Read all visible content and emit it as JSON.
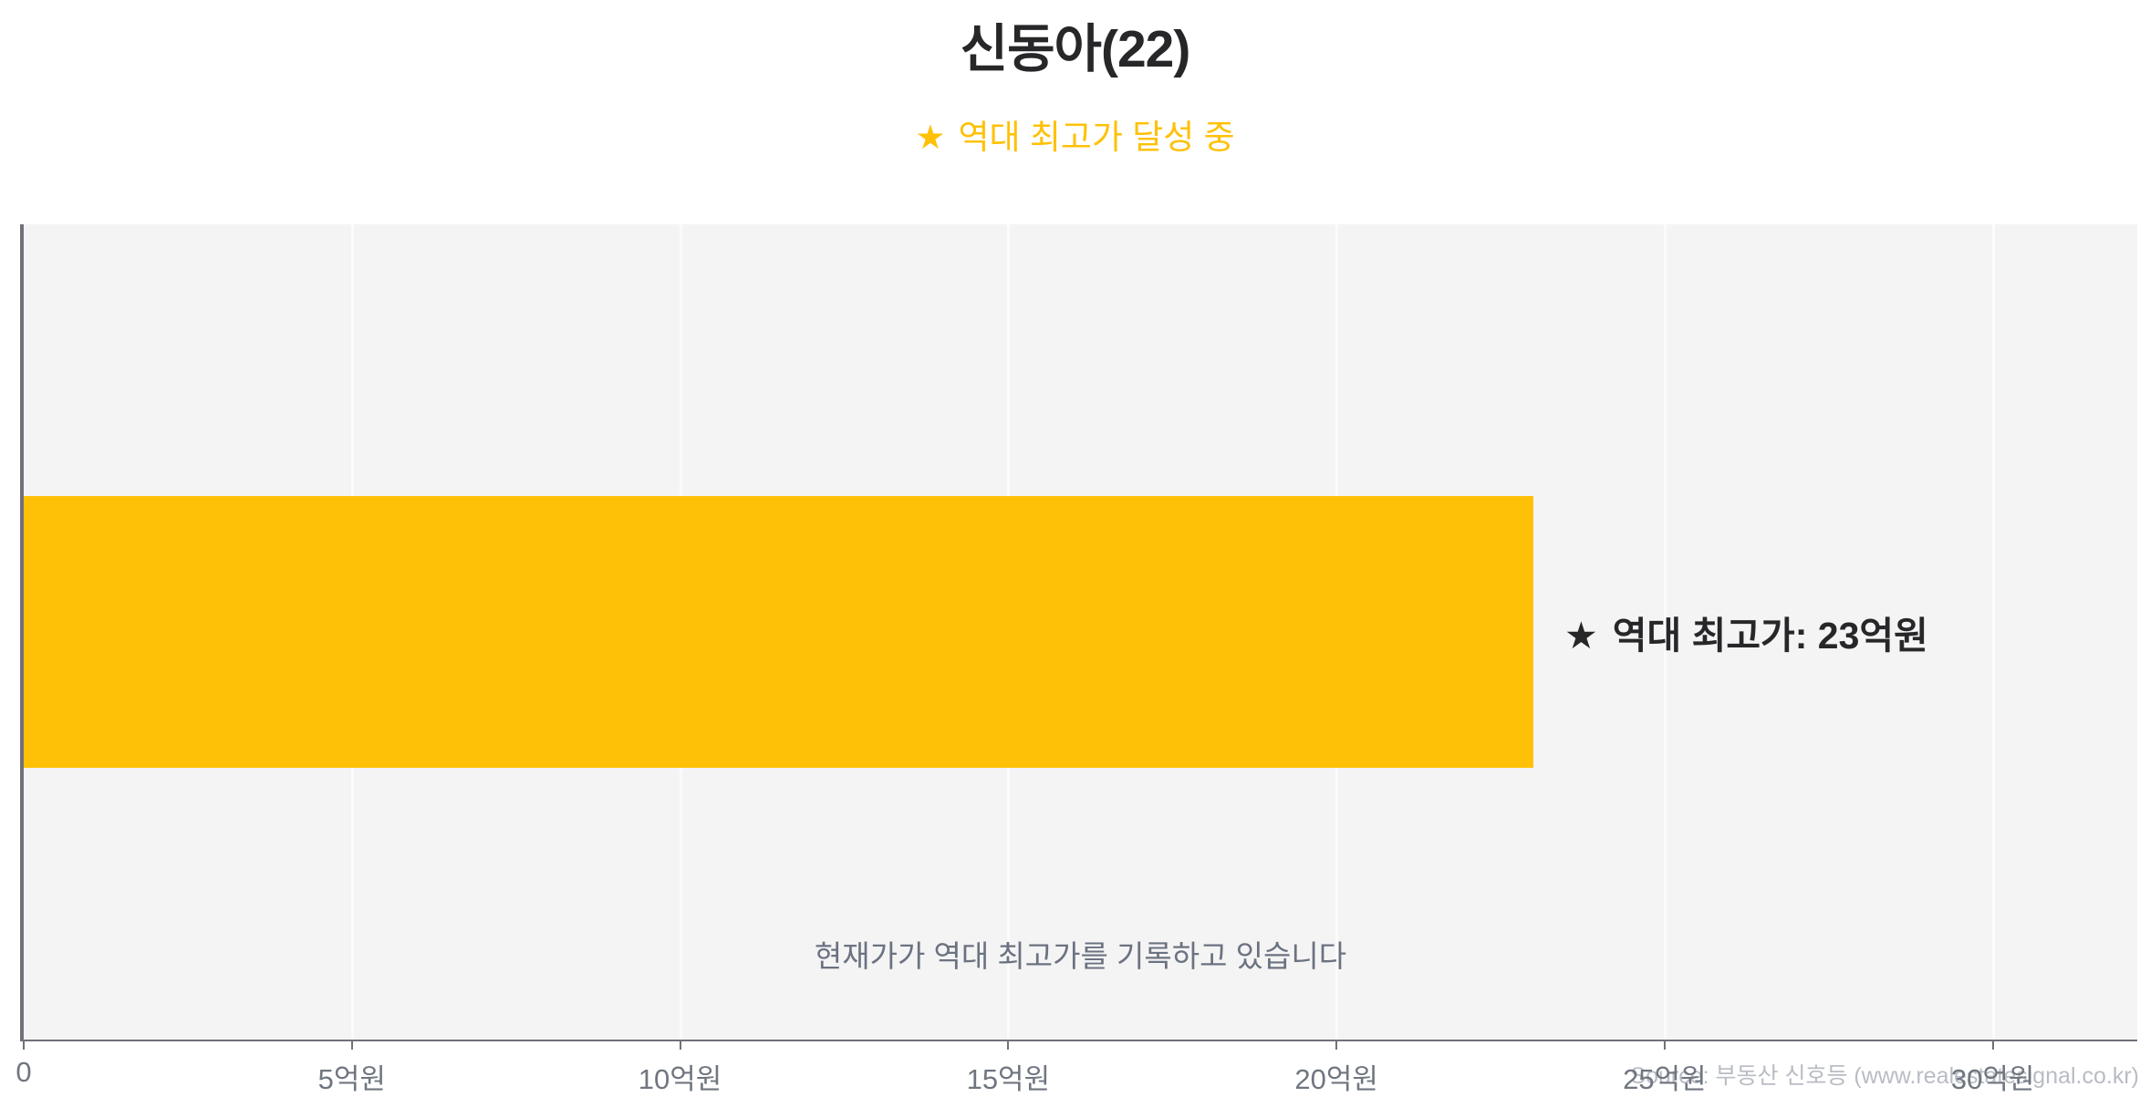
{
  "header": {
    "title": "신동아(22)",
    "subtitle": {
      "star_icon": "★",
      "text": "역대 최고가 달성 중"
    }
  },
  "bar_callout": {
    "star_icon": "★",
    "text": "역대 최고가: 23억원"
  },
  "source_note": "Source: 부동산 신호등 (www.realestatesignal.co.kr)",
  "colors": {
    "accent": "#ffc107",
    "bar": "#ffc107",
    "title_text": "#27272a",
    "callout_text": "#27272a",
    "axis_line": "#71717a",
    "tick_label": "#6f7680",
    "annotation_text": "#6b7280",
    "plot_bg": "#f4f4f5",
    "gridline": "#fbfbfc",
    "source_text": "#b9bcc4"
  },
  "chart_data": {
    "type": "bar",
    "orientation": "horizontal",
    "title": "신동아(22)",
    "subtitle": "★ 역대 최고가 달성 중",
    "categories": [
      "신동아(22)"
    ],
    "values": [
      23
    ],
    "unit": "억원",
    "data_label": "★ 역대 최고가: 23억원",
    "annotation": "현재가가 역대 최고가를 기록하고 있습니다",
    "xlim": [
      0,
      32.2
    ],
    "x_ticks": [
      {
        "value": 0,
        "label": "0"
      },
      {
        "value": 5,
        "label": "5억원"
      },
      {
        "value": 10,
        "label": "10억원"
      },
      {
        "value": 15,
        "label": "15억원"
      },
      {
        "value": 20,
        "label": "20억원"
      },
      {
        "value": 25,
        "label": "25억원"
      },
      {
        "value": 30,
        "label": "30억원"
      }
    ],
    "grid": true,
    "legend": false,
    "bar_color": "#ffc107"
  }
}
